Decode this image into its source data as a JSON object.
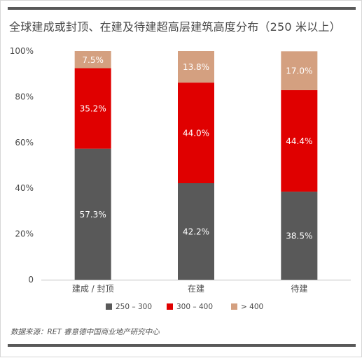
{
  "title": "全球建成或封顶、在建及待建超高层建筑高度分布（250 米以上）",
  "source": "数据来源：RET 睿意德中国商业地产研究中心",
  "colors": {
    "bar_250_300": "#595959",
    "bar_300_400": "#e00000",
    "bar_over_400": "#d4a080",
    "top_bar": "#595959"
  },
  "chart_data": {
    "type": "bar",
    "stacked": true,
    "title": "全球建成或封顶、在建及待建超高层建筑高度分布（250 米以上）",
    "xlabel": "",
    "ylabel": "",
    "categories": [
      "建成 / 封顶",
      "在建",
      "待建"
    ],
    "ylim": [
      0,
      100
    ],
    "yticks": [
      "0",
      "20%",
      "40%",
      "60%",
      "80%",
      "100%"
    ],
    "legend_position": "bottom",
    "grid": false,
    "series": [
      {
        "name": "250 – 300",
        "values": [
          57.3,
          42.2,
          38.5
        ],
        "labels": [
          "57.3%",
          "42.2%",
          "38.5%"
        ],
        "color": "#595959"
      },
      {
        "name": "300 – 400",
        "values": [
          35.2,
          44.0,
          44.4
        ],
        "labels": [
          "35.2%",
          "44.0%",
          "44.4%"
        ],
        "color": "#e00000"
      },
      {
        "name": "> 400",
        "values": [
          7.5,
          13.8,
          17.0
        ],
        "labels": [
          "7.5%",
          "13.8%",
          "17.0%"
        ],
        "color": "#d4a080"
      }
    ]
  }
}
